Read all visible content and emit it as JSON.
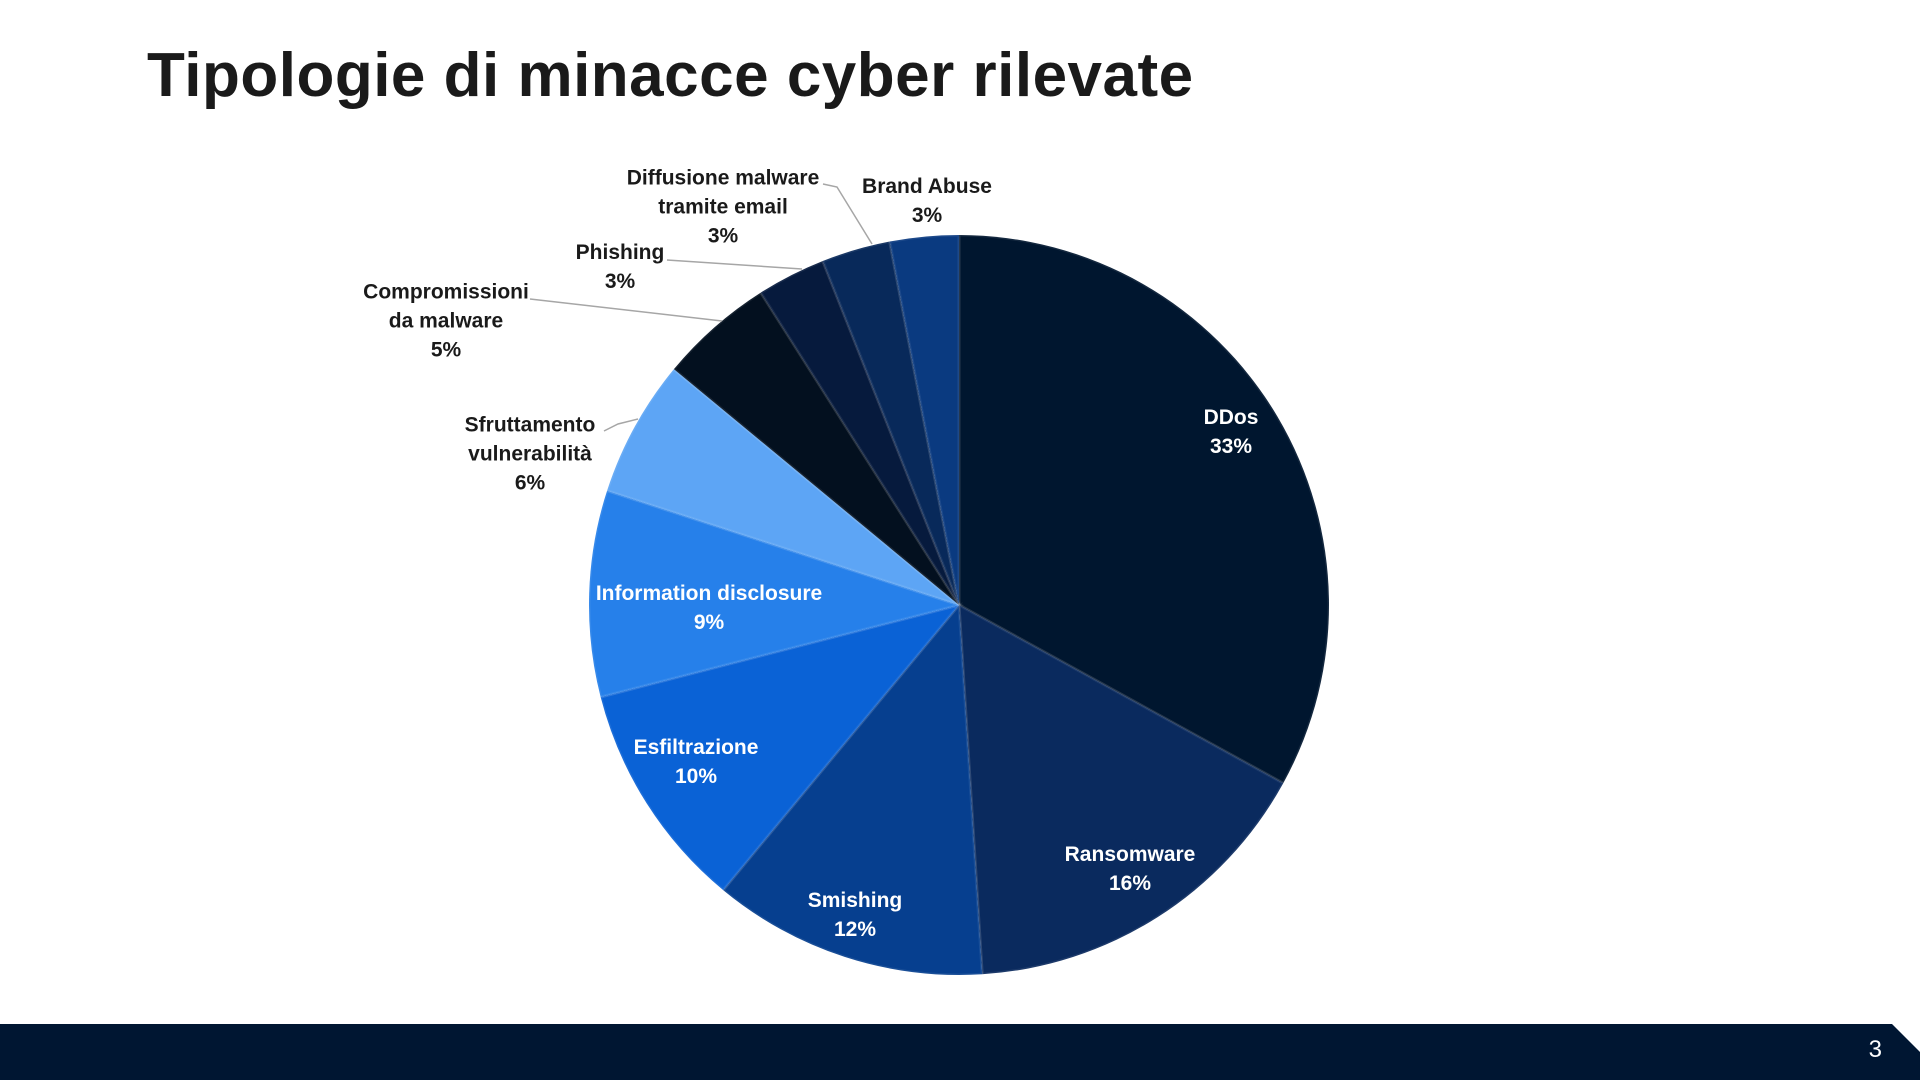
{
  "chart_data": {
    "type": "pie",
    "title": "Tipologie di minacce cyber rilevate",
    "start": "top",
    "direction": "clockwise",
    "slices": [
      {
        "label": [
          "DDos"
        ],
        "value": 33,
        "display": "33%",
        "color": "#00162f",
        "text_color": "#ffffff"
      },
      {
        "label": [
          "Ransomware"
        ],
        "value": 16,
        "display": "16%",
        "color": "#0a2a5e",
        "text_color": "#ffffff"
      },
      {
        "label": [
          "Smishing"
        ],
        "value": 12,
        "display": "12%",
        "color": "#063f8f",
        "text_color": "#ffffff"
      },
      {
        "label": [
          "Esfiltrazione"
        ],
        "value": 10,
        "display": "10%",
        "color": "#0a62d6",
        "text_color": "#ffffff"
      },
      {
        "label": [
          "Information disclosure"
        ],
        "value": 9,
        "display": "9%",
        "color": "#2680ea",
        "text_color": "#ffffff"
      },
      {
        "label": [
          "Sfruttamento",
          "vulnerabilità"
        ],
        "value": 6,
        "display": "6%",
        "color": "#5da5f5",
        "text_color": "#1a1a1a"
      },
      {
        "label": [
          "Compromissioni",
          "da malware"
        ],
        "value": 5,
        "display": "5%",
        "color": "#03101f",
        "text_color": "#1a1a1a"
      },
      {
        "label": [
          "Phishing"
        ],
        "value": 3,
        "display": "3%",
        "color": "#061a3d",
        "text_color": "#1a1a1a"
      },
      {
        "label": [
          "Diffusione malware",
          "tramite email"
        ],
        "value": 3,
        "display": "3%",
        "color": "#08295a",
        "text_color": "#1a1a1a"
      },
      {
        "label": [
          "Brand Abuse"
        ],
        "value": 3,
        "display": "3%",
        "color": "#0a3a80",
        "text_color": "#1a1a1a"
      }
    ]
  },
  "footer": {
    "page_number": "3",
    "color": "#001632"
  }
}
